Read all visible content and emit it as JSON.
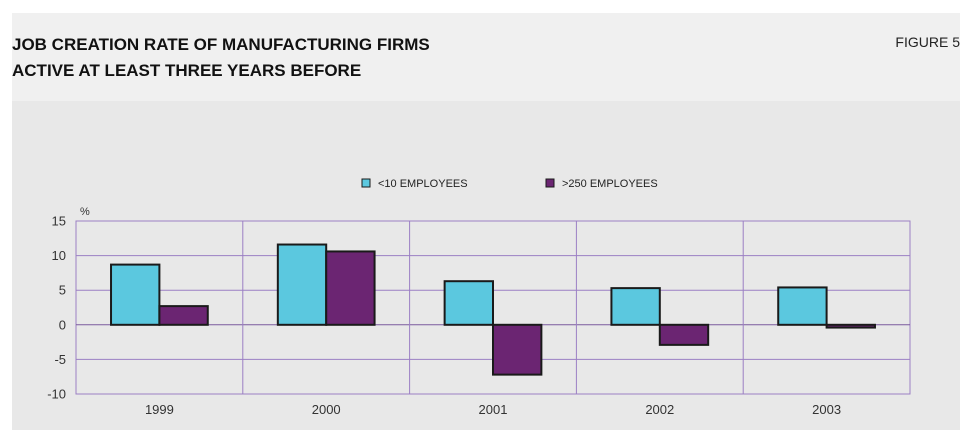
{
  "header": {
    "title": "JOB CREATION RATE OF MANUFACTURING FIRMS\nACTIVE AT LEAST THREE YEARS BEFORE",
    "figure_label": "FIGURE 5"
  },
  "chart_data": {
    "type": "bar",
    "title": "JOB CREATION RATE OF MANUFACTURING FIRMS ACTIVE AT LEAST THREE YEARS BEFORE",
    "categories": [
      "1999",
      "2000",
      "2001",
      "2002",
      "2003"
    ],
    "series": [
      {
        "name": "<10 EMPLOYEES",
        "values": [
          8.7,
          11.6,
          6.3,
          5.3,
          5.4
        ],
        "color": "#5bc8df"
      },
      {
        "name": ">250 EMPLOYEES",
        "values": [
          2.7,
          10.6,
          -7.2,
          -2.9,
          -0.4
        ],
        "color": "#6b2572"
      }
    ],
    "ylabel": "%",
    "ylim": [
      -10,
      15
    ],
    "yticks": [
      15,
      10,
      5,
      0,
      -5,
      -10
    ],
    "grid": true,
    "grid_color": "#9b7fc4",
    "legend_position": "top-center"
  }
}
